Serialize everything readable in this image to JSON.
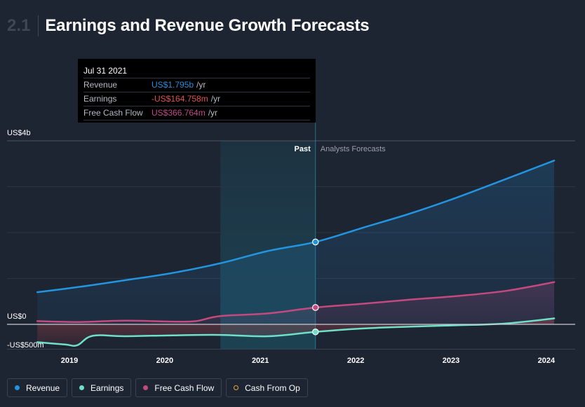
{
  "header": {
    "section_number": "2.1",
    "title": "Earnings and Revenue Growth Forecasts"
  },
  "tooltip": {
    "date": "Jul 31 2021",
    "rows": [
      {
        "label": "Revenue",
        "value": "US$1.795b",
        "unit": "/yr",
        "color": "#2c8cd8"
      },
      {
        "label": "Earnings",
        "value": "-US$164.758m",
        "unit": "/yr",
        "color": "#e05252"
      },
      {
        "label": "Free Cash Flow",
        "value": "US$366.764m",
        "unit": "/yr",
        "color": "#c24a86"
      }
    ]
  },
  "legend": [
    {
      "label": "Revenue",
      "color": "#2394df",
      "hollow": false
    },
    {
      "label": "Earnings",
      "color": "#6fe0c8",
      "hollow": false
    },
    {
      "label": "Free Cash Flow",
      "color": "#c4497f",
      "hollow": false
    },
    {
      "label": "Cash From Op",
      "color": "#e3a83c",
      "hollow": true
    }
  ],
  "chart_data": {
    "type": "line",
    "title": "Earnings and Revenue Growth Forecasts",
    "xlabel": "",
    "ylabel": "",
    "x_tick_labels": [
      "2019",
      "2020",
      "2021",
      "2022",
      "2023",
      "2024"
    ],
    "y_tick_labels": [
      "US$4b",
      "US$0",
      "-US$500m"
    ],
    "ylim": [
      -500,
      4000
    ],
    "y_unit": "US$ millions",
    "past_label": "Past",
    "forecast_label": "Analysts Forecasts",
    "past_end": "2021-07-31",
    "highlight_start": "2020-08-01",
    "series": [
      {
        "name": "Revenue",
        "color": "#2394df",
        "points": [
          [
            "2018-08-31",
            700
          ],
          [
            "2019-01-31",
            810
          ],
          [
            "2019-07-31",
            960
          ],
          [
            "2020-01-31",
            1120
          ],
          [
            "2020-07-31",
            1330
          ],
          [
            "2021-01-31",
            1600
          ],
          [
            "2021-07-31",
            1795
          ],
          [
            "2022-01-31",
            2110
          ],
          [
            "2022-07-31",
            2420
          ],
          [
            "2023-01-31",
            2780
          ],
          [
            "2023-07-31",
            3170
          ],
          [
            "2024-01-31",
            3570
          ]
        ]
      },
      {
        "name": "Earnings",
        "color": "#6fe0c8",
        "points": [
          [
            "2018-08-31",
            -390
          ],
          [
            "2018-12-15",
            -440
          ],
          [
            "2019-01-31",
            -455
          ],
          [
            "2019-03-31",
            -250
          ],
          [
            "2019-07-31",
            -260
          ],
          [
            "2020-01-31",
            -240
          ],
          [
            "2020-07-31",
            -230
          ],
          [
            "2021-01-31",
            -260
          ],
          [
            "2021-07-31",
            -164.758
          ],
          [
            "2022-01-31",
            -90
          ],
          [
            "2022-07-31",
            -50
          ],
          [
            "2023-01-31",
            -20
          ],
          [
            "2023-07-31",
            20
          ],
          [
            "2024-01-31",
            130
          ]
        ]
      },
      {
        "name": "Free Cash Flow",
        "color": "#c4497f",
        "points": [
          [
            "2018-08-31",
            70
          ],
          [
            "2019-01-31",
            50
          ],
          [
            "2019-07-31",
            80
          ],
          [
            "2020-01-31",
            60
          ],
          [
            "2020-04-30",
            70
          ],
          [
            "2020-07-31",
            180
          ],
          [
            "2021-01-31",
            240
          ],
          [
            "2021-07-31",
            366.764
          ],
          [
            "2022-01-31",
            450
          ],
          [
            "2022-07-31",
            540
          ],
          [
            "2023-01-31",
            620
          ],
          [
            "2023-07-31",
            730
          ],
          [
            "2024-01-31",
            920
          ]
        ]
      }
    ]
  }
}
